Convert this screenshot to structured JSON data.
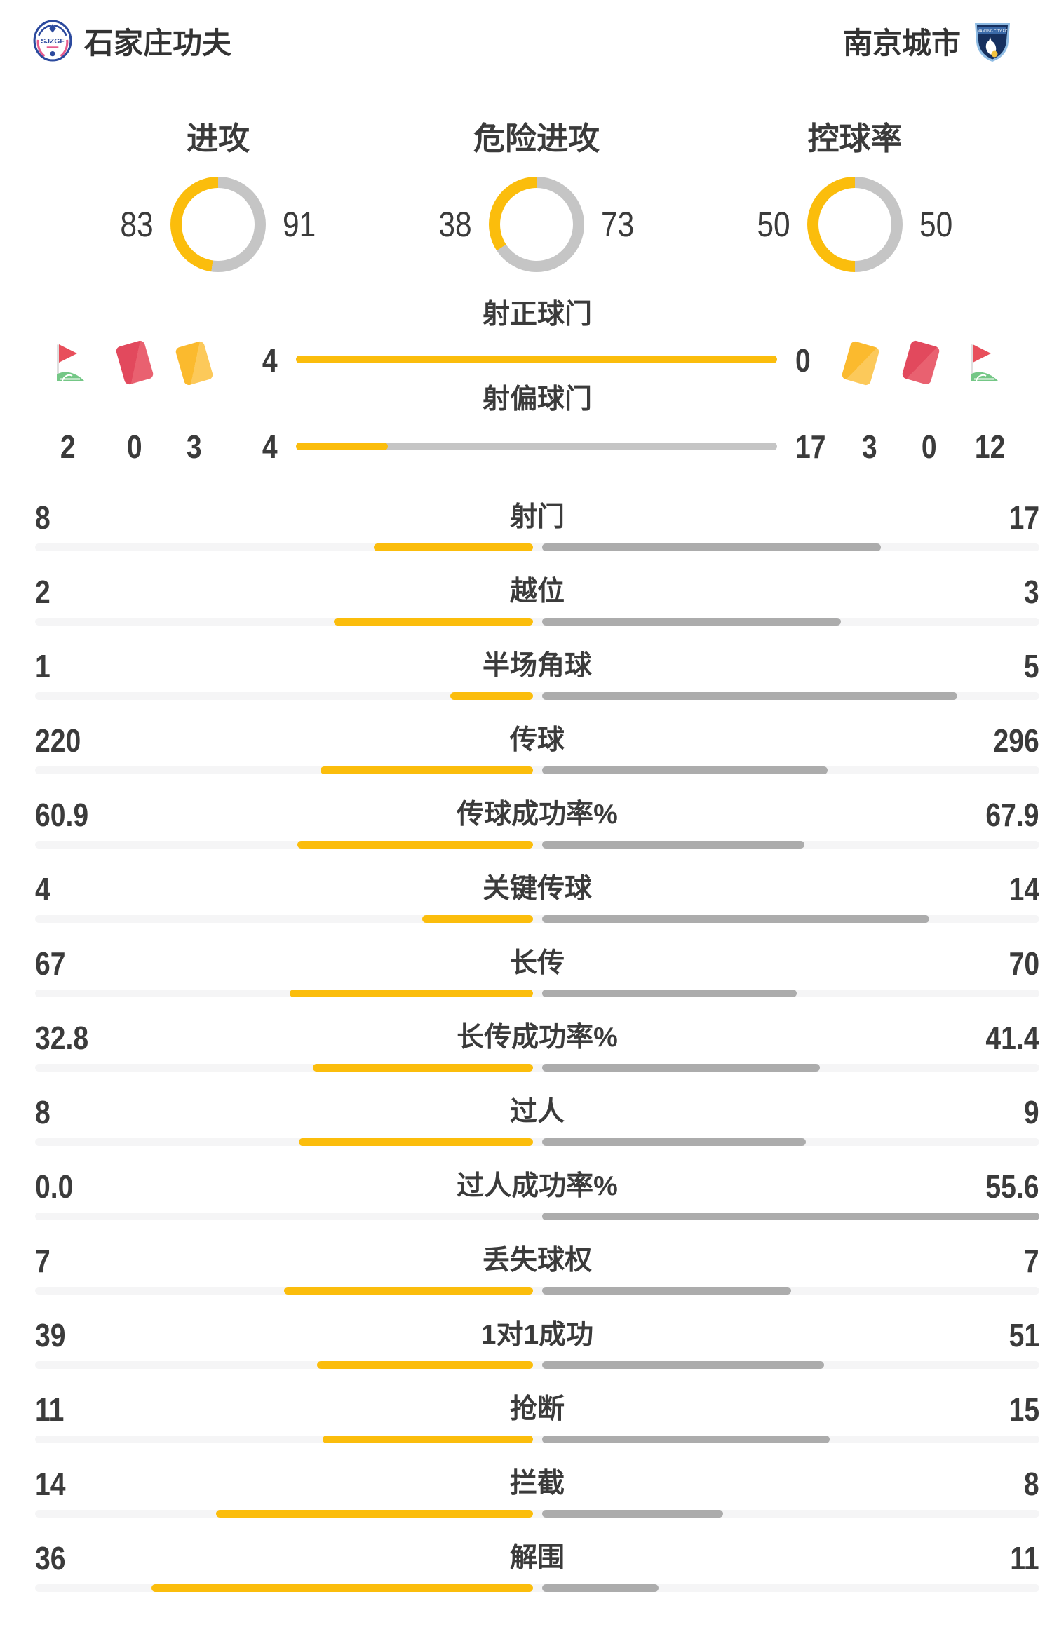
{
  "header": {
    "home_team": {
      "name": "石家庄功夫",
      "logo_icon": "sjzgf-crest"
    },
    "away_team": {
      "name": "南京城市",
      "logo_icon": "nanjing-city-shield"
    }
  },
  "donut_charts": [
    {
      "label": "进攻",
      "home": "83",
      "away": "91"
    },
    {
      "label": "危险进攻",
      "home": "38",
      "away": "73"
    },
    {
      "label": "控球率",
      "home": "50",
      "away": "50"
    }
  ],
  "shot_rows": [
    {
      "label": "射正球门",
      "home": "4",
      "away": "0"
    },
    {
      "label": "射偏球门",
      "home": "4",
      "away": "17"
    }
  ],
  "discipline": {
    "home": {
      "corner_flag": "2",
      "red_card": "0",
      "yellow_card": "3"
    },
    "away": {
      "yellow_card": "3",
      "red_card": "0",
      "corner_flag": "12"
    }
  },
  "stats": [
    {
      "label": "射门",
      "home": "8",
      "away": "17"
    },
    {
      "label": "越位",
      "home": "2",
      "away": "3"
    },
    {
      "label": "半场角球",
      "home": "1",
      "away": "5"
    },
    {
      "label": "传球",
      "home": "220",
      "away": "296"
    },
    {
      "label": "传球成功率%",
      "home": "60.9",
      "away": "67.9"
    },
    {
      "label": "关键传球",
      "home": "4",
      "away": "14"
    },
    {
      "label": "长传",
      "home": "67",
      "away": "70"
    },
    {
      "label": "长传成功率%",
      "home": "32.8",
      "away": "41.4"
    },
    {
      "label": "过人",
      "home": "8",
      "away": "9"
    },
    {
      "label": "过人成功率%",
      "home": "0.0",
      "away": "55.6"
    },
    {
      "label": "丢失球权",
      "home": "7",
      "away": "7"
    },
    {
      "label": "1对1成功",
      "home": "39",
      "away": "51"
    },
    {
      "label": "抢断",
      "home": "11",
      "away": "15"
    },
    {
      "label": "拦截",
      "home": "14",
      "away": "8"
    },
    {
      "label": "解围",
      "home": "36",
      "away": "11"
    }
  ],
  "colors": {
    "home_yellow": "#fbbd0c",
    "away_bar_gray": "#acacac",
    "donut_gray": "#c5c5c5",
    "shotbar_gray": "#c5c5c5",
    "track_gray": "#f5f5f6",
    "text": "#3b3b3b"
  }
}
